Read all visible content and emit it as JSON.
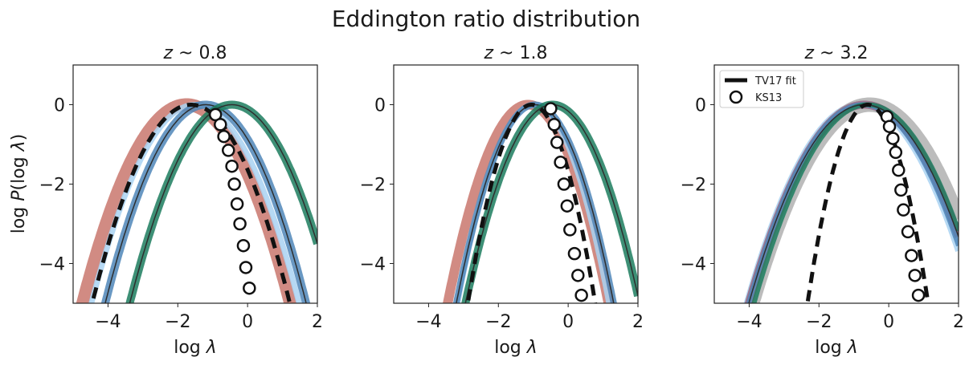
{
  "figure": {
    "suptitle": "Eddington ratio distribution",
    "ylabel": "log P(log λ)",
    "xlabel": "log λ"
  },
  "legend": {
    "location": "upper left of third panel",
    "items": [
      {
        "label": "TV17 fit",
        "style": "black dashed line"
      },
      {
        "label": "KS13",
        "style": "white circle with black edge"
      }
    ]
  },
  "colors": {
    "red": "#c9776d",
    "blue": "#4f86b8",
    "lightblue": "#a9d2f2",
    "green": "#1c7d5e",
    "dark": "#2e2e2e",
    "black": "#111111",
    "grey": "#b0b0b0",
    "mauve": "#9a6a86"
  },
  "chart_data": [
    {
      "type": "line",
      "title": "z ~ 0.8",
      "title_prefix": "z ~ ",
      "title_value": "0.8",
      "xlabel": "log λ",
      "ylabel": "log P(log λ)",
      "xlim": [
        -5,
        2
      ],
      "ylim": [
        -5,
        1
      ],
      "xticks": [
        -4,
        -2,
        0,
        2
      ],
      "yticks": [
        -4,
        -2,
        0
      ],
      "grid": false,
      "model_curves": [
        {
          "color": "red",
          "peak": -1.75,
          "sigma": 0.62,
          "band_width": 16
        },
        {
          "color": "lightblue",
          "peak": -1.5,
          "sigma": 0.62,
          "band_width": 7
        },
        {
          "color": "blue",
          "peak": -1.2,
          "sigma": 0.6,
          "band_width": 10
        },
        {
          "color": "dark",
          "peak": -1.2,
          "sigma": 0.6,
          "band_width": 1.5
        },
        {
          "color": "green",
          "peak": -0.45,
          "sigma": 0.61,
          "band_width": 10
        },
        {
          "color": "dark",
          "peak": -0.45,
          "sigma": 0.61,
          "band_width": 1.5
        }
      ],
      "fit_line": {
        "name": "TV17 fit",
        "peak": -1.62,
        "sigma": 0.59
      },
      "ks13_points": [
        {
          "x": -0.92,
          "y": -0.25
        },
        {
          "x": -0.78,
          "y": -0.5
        },
        {
          "x": -0.68,
          "y": -0.8
        },
        {
          "x": -0.55,
          "y": -1.15
        },
        {
          "x": -0.45,
          "y": -1.55
        },
        {
          "x": -0.38,
          "y": -2.0
        },
        {
          "x": -0.3,
          "y": -2.5
        },
        {
          "x": -0.22,
          "y": -3.0
        },
        {
          "x": -0.12,
          "y": -3.55
        },
        {
          "x": -0.05,
          "y": -4.1
        },
        {
          "x": 0.05,
          "y": -4.62
        }
      ]
    },
    {
      "type": "line",
      "title": "z ~ 1.8",
      "title_prefix": "z ~ ",
      "title_value": "1.8",
      "xlabel": "log λ",
      "ylabel": "",
      "xlim": [
        -5,
        2
      ],
      "ylim": [
        -5,
        1
      ],
      "xticks": [
        -4,
        -2,
        0,
        2
      ],
      "yticks": [
        -4,
        -2,
        0
      ],
      "grid": false,
      "model_curves": [
        {
          "color": "red",
          "peak": -1.15,
          "sigma": 0.48,
          "band_width": 12
        },
        {
          "color": "lightblue",
          "peak": -1.0,
          "sigma": 0.45,
          "band_width": 6
        },
        {
          "color": "blue",
          "peak": -0.95,
          "sigma": 0.47,
          "band_width": 8
        },
        {
          "color": "dark",
          "peak": -0.95,
          "sigma": 0.47,
          "band_width": 1.5
        },
        {
          "color": "green",
          "peak": -0.45,
          "sigma": 0.52,
          "band_width": 10
        },
        {
          "color": "dark",
          "peak": -0.45,
          "sigma": 0.52,
          "band_width": 1.5
        }
      ],
      "fit_line": {
        "name": "TV17 fit",
        "peak": -1.05,
        "sigma": 0.38
      },
      "ks13_points": [
        {
          "x": -0.5,
          "y": -0.1
        },
        {
          "x": -0.4,
          "y": -0.5
        },
        {
          "x": -0.32,
          "y": -0.95
        },
        {
          "x": -0.22,
          "y": -1.45
        },
        {
          "x": -0.12,
          "y": -2.0
        },
        {
          "x": -0.03,
          "y": -2.55
        },
        {
          "x": 0.05,
          "y": -3.15
        },
        {
          "x": 0.18,
          "y": -3.75
        },
        {
          "x": 0.28,
          "y": -4.3
        },
        {
          "x": 0.38,
          "y": -4.8
        }
      ]
    },
    {
      "type": "line",
      "title": "z ~ 3.2",
      "title_prefix": "z ~ ",
      "title_value": "3.2",
      "xlabel": "log λ",
      "ylabel": "",
      "xlim": [
        -5,
        2
      ],
      "ylim": [
        -5,
        1
      ],
      "xticks": [
        -4,
        -2,
        0,
        2
      ],
      "yticks": [
        -4,
        -2,
        0
      ],
      "grid": false,
      "model_curves": [
        {
          "color": "lightblue",
          "peak": -0.8,
          "sigma": 0.68,
          "band_width": 8
        },
        {
          "color": "grey",
          "peak": -0.55,
          "sigma": 0.7,
          "band_width": 18
        },
        {
          "color": "mauve",
          "peak": -0.7,
          "sigma": 0.69,
          "band_width": 10
        },
        {
          "color": "blue",
          "peak": -0.75,
          "sigma": 0.68,
          "band_width": 6
        },
        {
          "color": "green",
          "peak": -0.6,
          "sigma": 0.68,
          "band_width": 6
        },
        {
          "color": "dark",
          "peak": -0.7,
          "sigma": 0.69,
          "band_width": 1.5
        }
      ],
      "fit_line": {
        "name": "TV17 fit",
        "peak": -0.6,
        "sigma": 0.36
      },
      "ks13_points": [
        {
          "x": -0.05,
          "y": -0.3
        },
        {
          "x": 0.02,
          "y": -0.55
        },
        {
          "x": 0.12,
          "y": -0.85
        },
        {
          "x": 0.2,
          "y": -1.2
        },
        {
          "x": 0.28,
          "y": -1.65
        },
        {
          "x": 0.35,
          "y": -2.15
        },
        {
          "x": 0.42,
          "y": -2.65
        },
        {
          "x": 0.55,
          "y": -3.2
        },
        {
          "x": 0.65,
          "y": -3.8
        },
        {
          "x": 0.75,
          "y": -4.3
        },
        {
          "x": 0.85,
          "y": -4.8
        }
      ]
    }
  ]
}
